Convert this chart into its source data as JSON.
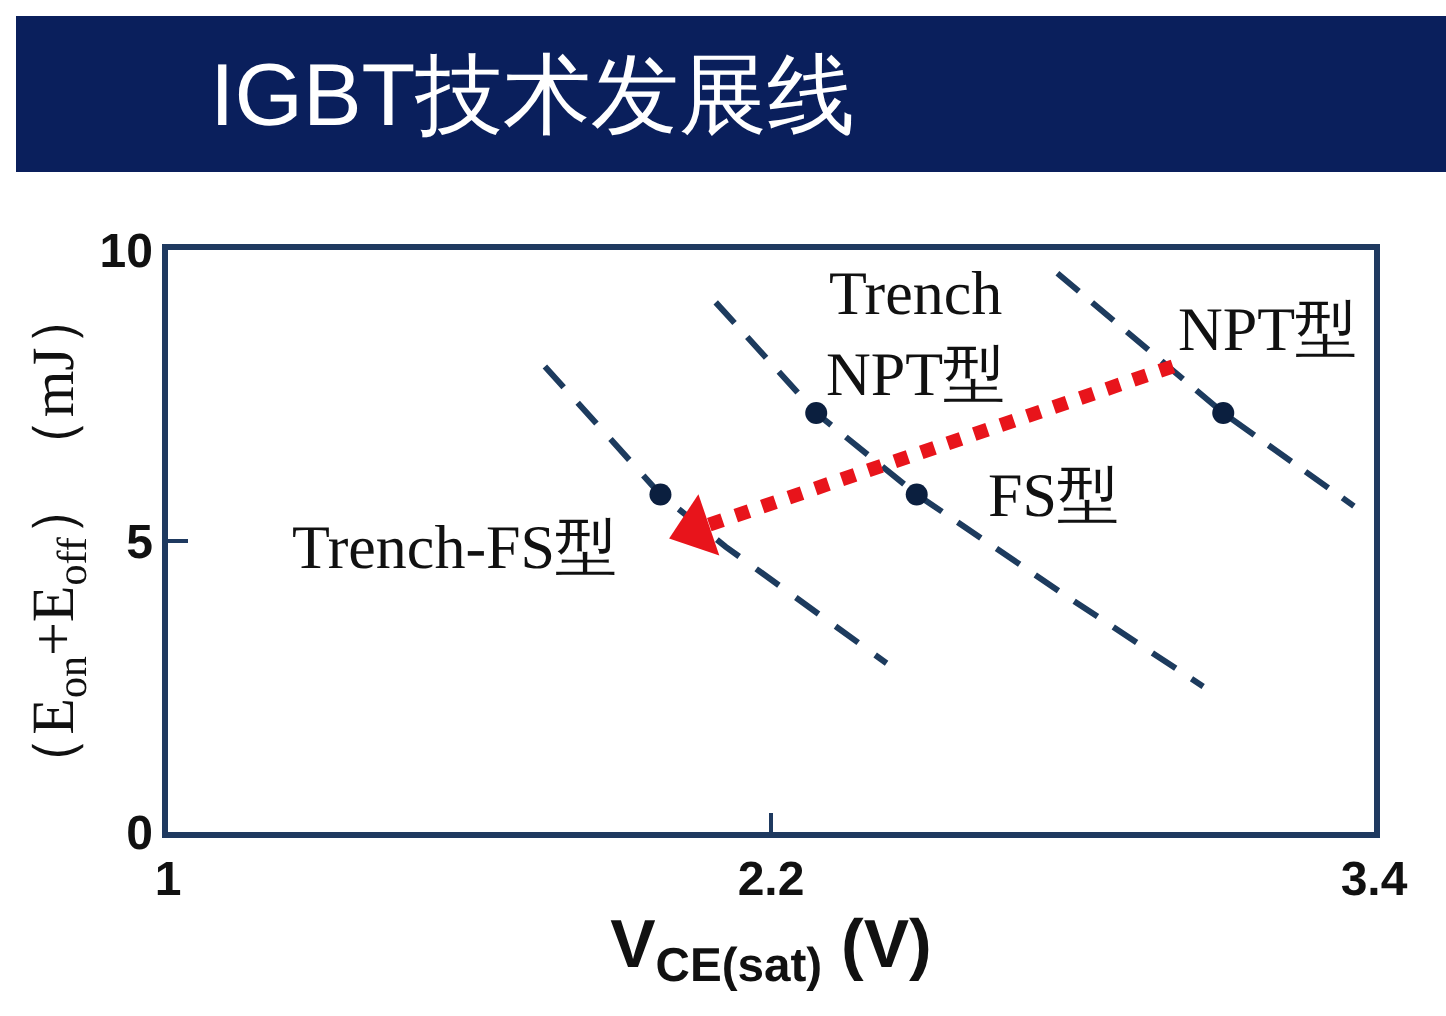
{
  "chart_data": {
    "type": "line",
    "title": "IGBT技术发展线",
    "xlabel": "V$_{CE(sat)}$ (V)",
    "ylabel": "（E$_{on}$+E$_{off}$）（mJ）",
    "xlim": [
      1,
      3.4
    ],
    "xticks": [
      1,
      2.2,
      3.4
    ],
    "ylim": [
      0,
      10
    ],
    "yticks": [
      0,
      5,
      10
    ],
    "line_style": "dashed",
    "marker": "none",
    "series": [
      {
        "color": "#1d3b5e",
        "x": [
          1.75,
          1.98,
          2.11,
          2.43
        ],
        "values": [
          8.0,
          5.8,
          4.9,
          2.9
        ]
      },
      {
        "color": "#1d3b5e",
        "x": [
          2.09,
          2.29,
          2.49,
          2.78,
          3.06
        ],
        "values": [
          9.1,
          7.2,
          5.8,
          4.1,
          2.5
        ]
      },
      {
        "color": "#1d3b5e",
        "x": [
          2.77,
          3.1,
          3.36
        ],
        "values": [
          9.6,
          7.2,
          5.6
        ]
      },
      {
        "type": "scatter",
        "marker": "circle",
        "color": "#0b1f3f",
        "x": [
          1.98,
          2.29,
          2.49,
          3.1
        ],
        "values": [
          5.8,
          7.2,
          5.8,
          7.2
        ]
      },
      {
        "color": "#e8141b",
        "line_style": "dotted",
        "marker": "triangle",
        "x": [
          3.0,
          2.05
        ],
        "values": [
          8.0,
          5.2
        ]
      }
    ],
    "annotations": [
      {
        "text": "Trench-FS型",
        "x": 1.98,
        "y": 5.8
      },
      {
        "text": "Trench\nNPT型",
        "x": 2.29,
        "y": 7.2
      },
      {
        "text": "FS型",
        "x": 2.49,
        "y": 5.8
      },
      {
        "text": "NPT型",
        "x": 3.1,
        "y": 7.2
      }
    ]
  }
}
